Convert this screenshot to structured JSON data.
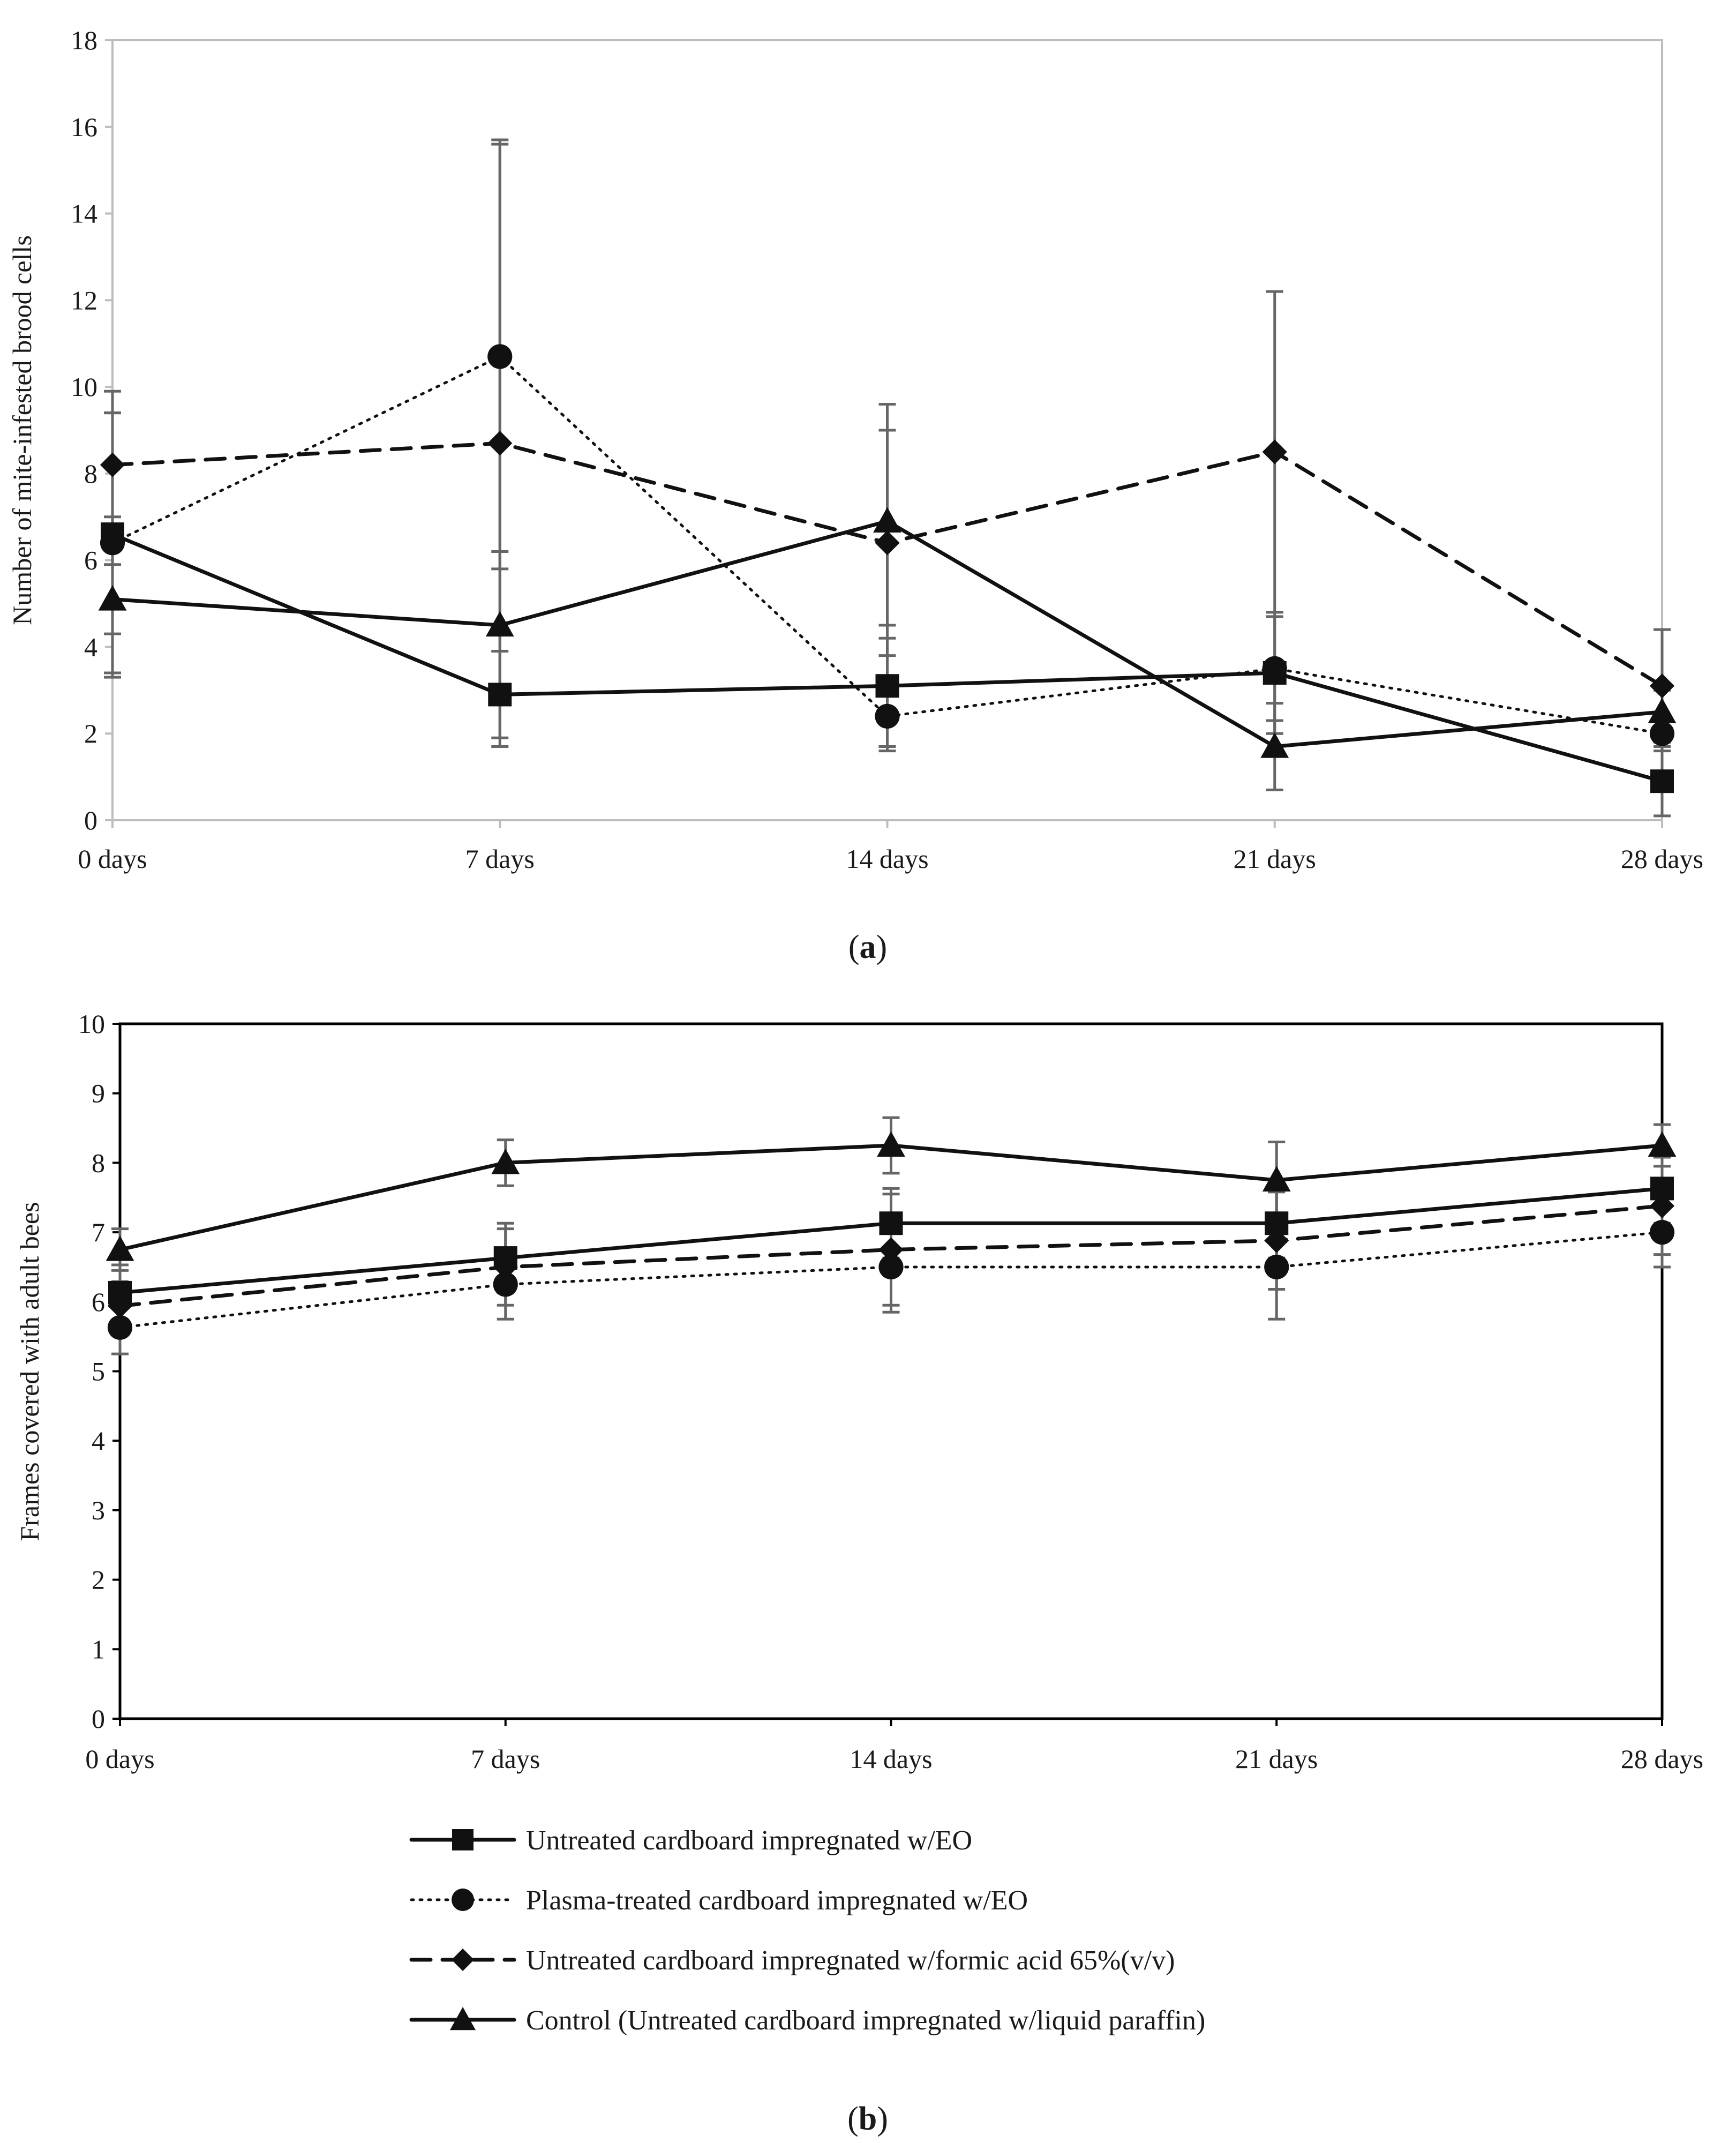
{
  "legend": [
    {
      "label": "Untreated cardboard impregnated w/EO",
      "marker": "square",
      "dash": "solid"
    },
    {
      "label": "Plasma-treated cardboard impregnated w/EO",
      "marker": "circle",
      "dash": "dotted"
    },
    {
      "label": "Untreated cardboard impregnated w/formic acid 65%(v/v)",
      "marker": "diamond",
      "dash": "dashed"
    },
    {
      "label": "Control (Untreated cardboard impregnated w/liquid paraffin)",
      "marker": "triangle",
      "dash": "solid"
    }
  ],
  "colors": {
    "series": "#111111",
    "error_bar": "#666666",
    "axis": "#000000",
    "axis_a": "#bdbdbd"
  },
  "chart_data": [
    {
      "id": "a",
      "panel_label": "a",
      "type": "line",
      "categories": [
        "0 days",
        "7 days",
        "14 days",
        "21 days",
        "28 days"
      ],
      "ylabel": "Number of mite-infested brood cells",
      "xlabel": "",
      "ylim": [
        0,
        18
      ],
      "yticks": [
        "0",
        "2",
        "4",
        "6",
        "8",
        "10",
        "12",
        "14",
        "16",
        "18"
      ],
      "grid": false,
      "series": [
        {
          "name": "Untreated cardboard impregnated w/EO",
          "values": [
            6.6,
            2.9,
            3.1,
            3.4,
            0.9
          ],
          "err": [
            3.3,
            1.0,
            1.4,
            1.4,
            0.8
          ]
        },
        {
          "name": "Plasma-treated cardboard impregnated w/EO",
          "values": [
            6.4,
            10.7,
            2.4,
            3.5,
            2.0
          ],
          "err": [
            3.0,
            4.9,
            0.8,
            1.2,
            0.4
          ]
        },
        {
          "name": "Untreated cardboard impregnated w/formic acid 65%(v/v)",
          "values": [
            8.2,
            8.7,
            6.4,
            8.5,
            3.1
          ],
          "err": [
            1.2,
            7.0,
            2.6,
            3.7,
            1.3
          ]
        },
        {
          "name": "Control (Untreated cardboard impregnated w/liquid paraffin)",
          "values": [
            5.1,
            4.5,
            6.9,
            1.7,
            2.5
          ],
          "err": [
            0.8,
            1.7,
            2.7,
            1.0,
            0.5
          ]
        }
      ]
    },
    {
      "id": "b",
      "panel_label": "b",
      "type": "line",
      "categories": [
        "0 days",
        "7 days",
        "14 days",
        "21 days",
        "28 days"
      ],
      "ylabel": "Frames covered with adult bees",
      "xlabel": "",
      "ylim": [
        0,
        10
      ],
      "yticks": [
        "0",
        "1",
        "2",
        "3",
        "4",
        "5",
        "6",
        "7",
        "8",
        "9",
        "10"
      ],
      "grid": false,
      "series": [
        {
          "name": "Untreated cardboard impregnated w/EO",
          "values": [
            6.13,
            6.63,
            7.13,
            7.13,
            7.63
          ],
          "err": [
            0.4,
            0.5,
            0.5,
            0.5,
            0.5
          ]
        },
        {
          "name": "Plasma-treated cardboard impregnated w/EO",
          "values": [
            5.63,
            6.25,
            6.5,
            6.5,
            7.0
          ],
          "err": [
            0.38,
            0.5,
            0.65,
            0.75,
            0.5
          ]
        },
        {
          "name": "Untreated cardboard impregnated w/formic acid 65%(v/v)",
          "values": [
            5.94,
            6.5,
            6.75,
            6.88,
            7.38
          ],
          "err": [
            0.35,
            0.55,
            0.8,
            0.7,
            0.7
          ]
        },
        {
          "name": "Control (Untreated cardboard impregnated w/liquid paraffin)",
          "values": [
            6.75,
            8.0,
            8.25,
            7.75,
            8.25
          ],
          "err": [
            0.3,
            0.33,
            0.4,
            0.55,
            0.3
          ]
        }
      ]
    }
  ]
}
